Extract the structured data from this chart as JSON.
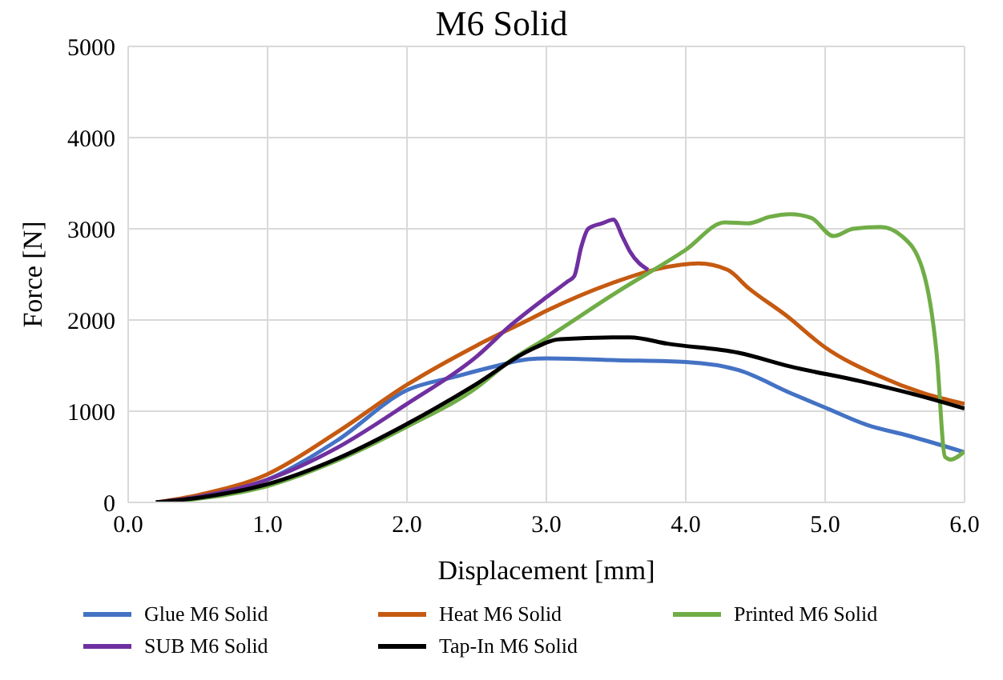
{
  "chart_data": {
    "type": "line",
    "title": "M6 Solid",
    "xlabel": "Displacement [mm]",
    "ylabel": "Force [N]",
    "xlim": [
      0,
      6
    ],
    "xticks": [
      {
        "value": 0,
        "label": "0.0"
      },
      {
        "value": 1,
        "label": "1.0"
      },
      {
        "value": 2,
        "label": "2.0"
      },
      {
        "value": 3,
        "label": "3.0"
      },
      {
        "value": 4,
        "label": "4.0"
      },
      {
        "value": 5,
        "label": "5.0"
      },
      {
        "value": 6,
        "label": "6.0"
      }
    ],
    "ylim": [
      0,
      5000
    ],
    "yticks": [
      0,
      1000,
      2000,
      3000,
      4000,
      5000
    ],
    "grid": true,
    "legend": "bottom",
    "marker": "none",
    "line_style": "solid",
    "series": [
      {
        "name": "Glue M6 Solid",
        "color": "#4472c4",
        "x": [
          0.2,
          0.5,
          1.0,
          1.5,
          2.0,
          2.35,
          2.6,
          2.87,
          3.0,
          3.5,
          4.0,
          4.38,
          4.75,
          5.0,
          5.3,
          5.6,
          6.0
        ],
        "values": [
          0,
          50,
          250,
          680,
          1230,
          1380,
          1480,
          1570,
          1580,
          1560,
          1540,
          1450,
          1200,
          1040,
          850,
          730,
          550
        ]
      },
      {
        "name": "Heat M6 Solid",
        "color": "#c55a11",
        "x": [
          0.2,
          0.5,
          1.0,
          1.5,
          2.0,
          2.5,
          2.87,
          3.0,
          3.5,
          3.8,
          4.09,
          4.3,
          4.45,
          4.72,
          5.0,
          5.38,
          5.7,
          6.0
        ],
        "values": [
          0,
          80,
          310,
          770,
          1290,
          1720,
          2000,
          2100,
          2420,
          2560,
          2620,
          2550,
          2350,
          2050,
          1700,
          1390,
          1200,
          1080
        ]
      },
      {
        "name": "Printed M6 Solid",
        "color": "#70ad47",
        "x": [
          0.2,
          0.5,
          1.0,
          1.5,
          2.0,
          2.5,
          2.73,
          3.0,
          3.5,
          4.0,
          4.28,
          4.45,
          4.6,
          4.75,
          4.9,
          5.06,
          5.2,
          5.4,
          5.55,
          5.7,
          5.8,
          5.86,
          5.9,
          6.0
        ],
        "values": [
          0,
          40,
          180,
          460,
          830,
          1260,
          1540,
          1800,
          2300,
          2770,
          3070,
          3060,
          3130,
          3160,
          3120,
          2920,
          3000,
          3020,
          2920,
          2550,
          1630,
          500,
          470,
          560
        ]
      },
      {
        "name": "SUB M6 Solid",
        "color": "#7030a0",
        "x": [
          0.2,
          0.5,
          1.0,
          1.5,
          2.0,
          2.5,
          2.75,
          3.0,
          3.15,
          3.2,
          3.25,
          3.3,
          3.4,
          3.48,
          3.55,
          3.6,
          3.73
        ],
        "values": [
          0,
          60,
          250,
          600,
          1080,
          1600,
          1950,
          2250,
          2420,
          2480,
          2800,
          3000,
          3060,
          3100,
          2900,
          2750,
          2550
        ]
      },
      {
        "name": "Tap-In M6 Solid",
        "color": "#000000",
        "x": [
          0.2,
          0.5,
          1.0,
          1.5,
          2.0,
          2.5,
          2.87,
          3.1,
          3.6,
          3.87,
          4.38,
          4.75,
          5.25,
          5.6,
          6.0
        ],
        "values": [
          0,
          50,
          200,
          480,
          860,
          1300,
          1660,
          1790,
          1810,
          1740,
          1640,
          1490,
          1330,
          1200,
          1030
        ]
      }
    ]
  }
}
